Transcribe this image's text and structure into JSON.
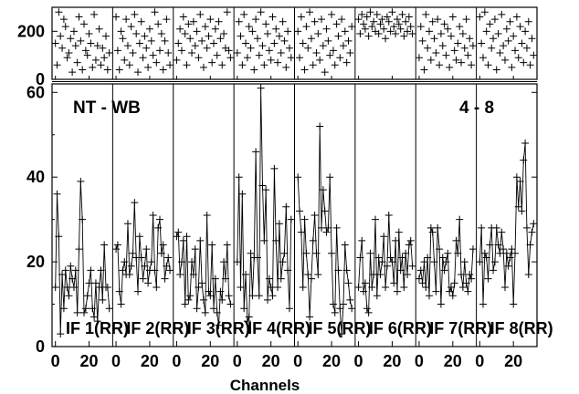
{
  "chart_data": {
    "type": "line",
    "title": "NT - WB",
    "corner_label": "4 - 8",
    "xlabel": "Channels",
    "ylabel": "",
    "xlim": [
      -2,
      34
    ],
    "x_ticks": [
      0,
      20
    ],
    "ylim": [
      0,
      62
    ],
    "y_ticks": [
      0,
      20,
      40,
      60
    ],
    "top_panel": {
      "description_free_values": true,
      "ylim": [
        0,
        300
      ],
      "y_ticks": [
        0,
        200
      ]
    },
    "grid": false,
    "legend": "none",
    "colors": {
      "line": "#000000",
      "frame": "#000000",
      "background": "#ffffff"
    },
    "series": [
      {
        "name": "IF 1(RR)",
        "values": [
          14,
          36,
          26,
          3,
          17,
          9,
          18,
          14,
          12,
          19,
          16,
          14,
          18,
          8,
          23,
          39,
          30,
          8,
          9,
          12,
          15,
          18,
          9,
          7,
          15,
          6,
          14,
          18,
          11,
          24,
          14,
          14,
          9
        ],
        "top": [
          150,
          60,
          280,
          180,
          130,
          250,
          220,
          90,
          110,
          170,
          30,
          200,
          140,
          70,
          260,
          160,
          40,
          230,
          120,
          100,
          190,
          150,
          50,
          270,
          80,
          140,
          210,
          60,
          130,
          90,
          180,
          40,
          110
        ]
      },
      {
        "name": "IF 2(RR)",
        "values": [
          23,
          24,
          13,
          10,
          18,
          20,
          17,
          29,
          17,
          19,
          22,
          34,
          21,
          13,
          26,
          21,
          16,
          19,
          23,
          15,
          18,
          20,
          31,
          18,
          14,
          28,
          30,
          22,
          24,
          16,
          19,
          21,
          18
        ],
        "top": [
          260,
          120,
          40,
          200,
          170,
          80,
          250,
          140,
          60,
          220,
          110,
          270,
          190,
          30,
          150,
          240,
          90,
          180,
          130,
          50,
          210,
          160,
          100,
          280,
          70,
          230,
          120,
          190,
          40,
          160,
          250,
          110,
          60
        ]
      },
      {
        "name": "IF 3(RR)",
        "values": [
          26,
          27,
          17,
          20,
          25,
          10,
          26,
          11,
          12,
          20,
          17,
          23,
          9,
          14,
          25,
          15,
          11,
          8,
          31,
          13,
          12,
          24,
          9,
          16,
          8,
          5,
          13,
          11,
          20,
          16,
          24,
          12,
          10
        ],
        "top": [
          80,
          150,
          210,
          120,
          260,
          190,
          60,
          230,
          170,
          110,
          240,
          140,
          200,
          90,
          270,
          160,
          50,
          220,
          130,
          180,
          250,
          70,
          150,
          210,
          100,
          240,
          170,
          60,
          190,
          130,
          280,
          120,
          90
        ]
      },
      {
        "name": "IF 4(RR)",
        "values": [
          20,
          40,
          14,
          36,
          9,
          17,
          6,
          7,
          22,
          12,
          21,
          46,
          21,
          12,
          61,
          38,
          25,
          37,
          11,
          16,
          14,
          12,
          42,
          25,
          14,
          29,
          16,
          20,
          22,
          33,
          18,
          9,
          30
        ],
        "top": [
          110,
          240,
          180,
          60,
          270,
          150,
          90,
          220,
          130,
          200,
          40,
          250,
          170,
          100,
          280,
          140,
          60,
          230,
          190,
          120,
          80,
          260,
          150,
          210,
          70,
          180,
          110,
          240,
          160,
          50,
          200,
          130,
          90
        ]
      },
      {
        "name": "IF 5(RR)",
        "values": [
          40,
          32,
          27,
          14,
          30,
          22,
          17,
          7,
          16,
          25,
          31,
          22,
          17,
          52,
          28,
          37,
          32,
          27,
          28,
          40,
          22,
          10,
          8,
          28,
          18,
          9,
          3,
          10,
          24,
          18,
          15,
          11,
          9
        ],
        "top": [
          200,
          90,
          260,
          150,
          40,
          220,
          130,
          280,
          170,
          60,
          240,
          110,
          190,
          80,
          250,
          140,
          30,
          210,
          160,
          100,
          270,
          120,
          60,
          230,
          180,
          90,
          250,
          140,
          200,
          70,
          160,
          110,
          220
        ]
      },
      {
        "name": "IF 6(RR)",
        "values": [
          14,
          21,
          25,
          13,
          15,
          9,
          8,
          22,
          14,
          17,
          30,
          12,
          21,
          17,
          20,
          26,
          14,
          19,
          31,
          21,
          20,
          15,
          25,
          13,
          27,
          18,
          21,
          14,
          22,
          17,
          24,
          25,
          19
        ],
        "top": [
          250,
          190,
          270,
          230,
          210,
          260,
          180,
          280,
          220,
          240,
          200,
          270,
          190,
          230,
          250,
          210,
          170,
          260,
          240,
          200,
          280,
          220,
          190,
          250,
          230,
          210,
          270,
          180,
          240,
          200,
          260,
          220,
          190
        ]
      },
      {
        "name": "IF 7(RR)",
        "values": [
          16,
          18,
          15,
          20,
          14,
          21,
          12,
          28,
          27,
          20,
          13,
          28,
          23,
          10,
          21,
          18,
          20,
          22,
          13,
          14,
          12,
          15,
          25,
          22,
          30,
          17,
          14,
          20,
          15,
          13,
          17,
          16,
          23
        ],
        "top": [
          90,
          220,
          160,
          40,
          270,
          130,
          200,
          80,
          240,
          170,
          110,
          250,
          60,
          190,
          140,
          230,
          100,
          210,
          50,
          180,
          260,
          120,
          80,
          150,
          220,
          70,
          190,
          130,
          250,
          100,
          170,
          60,
          140
        ]
      },
      {
        "name": "IF 8(RR)",
        "values": [
          20,
          28,
          10,
          22,
          21,
          16,
          24,
          28,
          18,
          20,
          28,
          24,
          22,
          27,
          23,
          14,
          22,
          19,
          21,
          23,
          10,
          22,
          40,
          33,
          39,
          32,
          44,
          48,
          28,
          17,
          24,
          27,
          29
        ],
        "top": [
          260,
          150,
          90,
          280,
          200,
          60,
          230,
          130,
          170,
          250,
          40,
          190,
          110,
          270,
          140,
          80,
          210,
          160,
          240,
          50,
          180,
          120,
          260,
          90,
          220,
          150,
          70,
          200,
          130,
          240,
          60,
          170,
          100
        ]
      }
    ]
  }
}
